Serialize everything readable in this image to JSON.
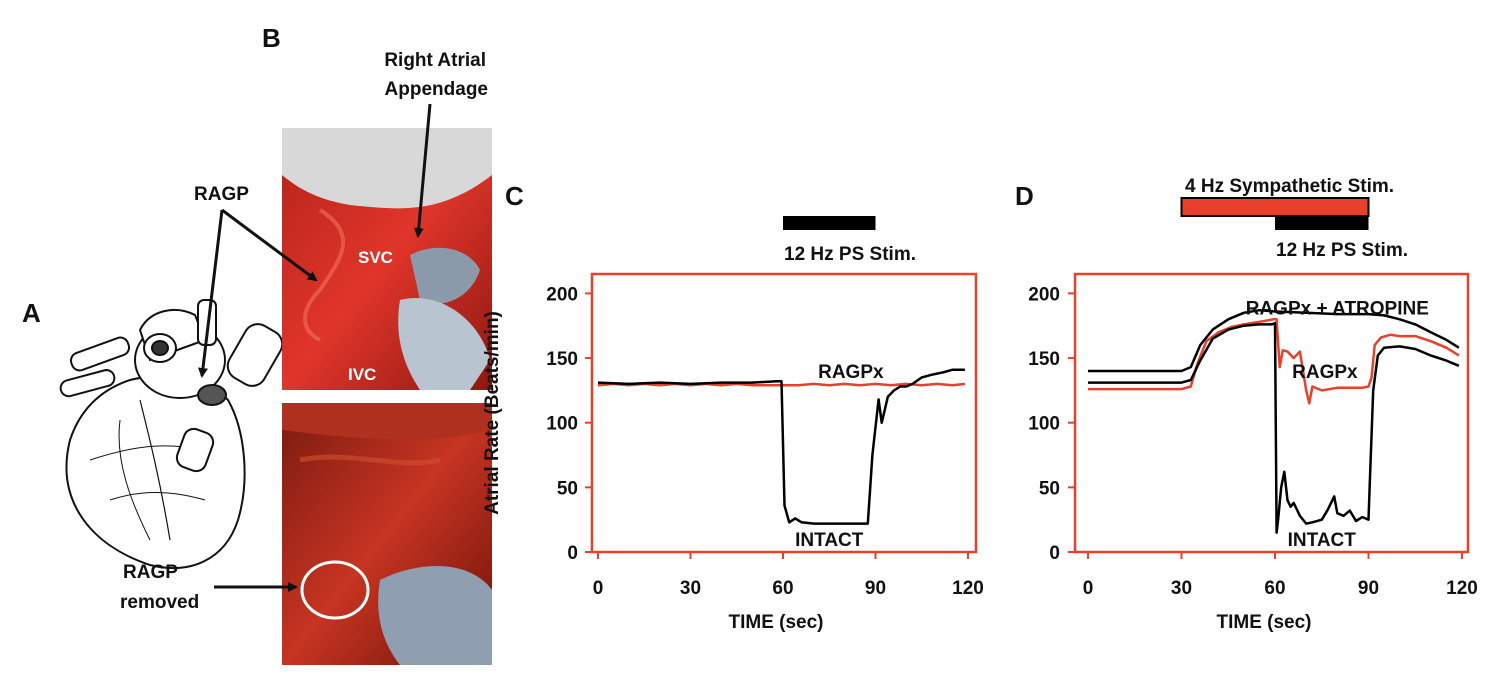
{
  "panels": {
    "a": {
      "letter": "A"
    },
    "b": {
      "letter": "B",
      "label_appendage_1": "Right Atrial",
      "label_appendage_2": "Appendage",
      "label_ragp": "RAGP",
      "label_svc": "SVC",
      "label_ivc": "IVC",
      "label_removed_1": "RAGP",
      "label_removed_2": "removed"
    }
  },
  "chart_data": [
    {
      "id": "C",
      "type": "line",
      "letter": "C",
      "xlabel": "TIME (sec)",
      "ylabel": "Atrial Rate (Beats/min)",
      "xlim": [
        -2,
        120
      ],
      "ylim": [
        0,
        215
      ],
      "xticks": [
        0,
        30,
        60,
        90,
        120
      ],
      "yticks": [
        0,
        50,
        100,
        150,
        200
      ],
      "frame_color": "#e8402a",
      "stim_bars": [
        {
          "label": "12 Hz PS Stim.",
          "x0": 60,
          "x1": 90,
          "color": "#000000"
        }
      ],
      "series": [
        {
          "name": "RAGPx",
          "color": "#e8402a",
          "x": [
            0,
            5,
            10,
            15,
            20,
            25,
            30,
            35,
            40,
            45,
            50,
            55,
            60,
            65,
            70,
            75,
            80,
            85,
            90,
            95,
            100,
            105,
            110,
            115,
            119
          ],
          "y": [
            129,
            130,
            129,
            130,
            129,
            130,
            129,
            130,
            129,
            130,
            129,
            129,
            129,
            129,
            130,
            129,
            130,
            129,
            130,
            129,
            130,
            129,
            130,
            129,
            130
          ]
        },
        {
          "name": "INTACT",
          "color": "#000000",
          "x": [
            0,
            10,
            20,
            30,
            40,
            50,
            58,
            59.5,
            60.5,
            62,
            64,
            66,
            70,
            75,
            80,
            83,
            86,
            87.5,
            89,
            91,
            92,
            93,
            94,
            96,
            98,
            100,
            102,
            105,
            108,
            112,
            115,
            119
          ],
          "y": [
            131,
            130,
            131,
            130,
            131,
            131,
            132,
            132,
            36,
            23,
            26,
            23,
            22,
            22,
            22,
            22,
            22,
            22,
            75,
            118,
            100,
            110,
            120,
            125,
            128,
            128,
            130,
            135,
            137,
            139,
            141,
            141
          ]
        }
      ],
      "annotations": [
        {
          "text": "RAGPx",
          "x": 82,
          "y": 140
        },
        {
          "text": "INTACT",
          "x": 75,
          "y": 10
        }
      ]
    },
    {
      "id": "D",
      "type": "line",
      "letter": "D",
      "xlabel": "TIME (sec)",
      "ylabel": "",
      "xlim": [
        -2,
        120
      ],
      "ylim": [
        0,
        215
      ],
      "xticks": [
        0,
        30,
        60,
        90,
        120
      ],
      "yticks": [
        0,
        50,
        100,
        150,
        200
      ],
      "frame_color": "#e8402a",
      "stim_bars": [
        {
          "label": "4 Hz Sympathetic Stim.",
          "x0": 30,
          "x1": 90,
          "color": "#e8402a",
          "outlined": true
        },
        {
          "label": "12 Hz PS Stim.",
          "x0": 60,
          "x1": 90,
          "color": "#000000"
        }
      ],
      "series": [
        {
          "name": "RAGPx + ATROPINE",
          "color": "#000000",
          "x": [
            0,
            10,
            20,
            30,
            33,
            36,
            40,
            45,
            50,
            55,
            60,
            70,
            80,
            90,
            95,
            100,
            105,
            110,
            115,
            119
          ],
          "y": [
            140,
            140,
            140,
            140,
            143,
            160,
            172,
            180,
            185,
            187,
            186,
            185,
            184,
            184,
            183,
            180,
            176,
            170,
            164,
            158
          ]
        },
        {
          "name": "RAGPx",
          "color": "#e8402a",
          "x": [
            0,
            10,
            20,
            30,
            33,
            35,
            38,
            42,
            46,
            50,
            55,
            59.5,
            60.5,
            61.5,
            62.5,
            64,
            66,
            68,
            70,
            71,
            72,
            75,
            80,
            85,
            88,
            90,
            91,
            92,
            94,
            97,
            100,
            105,
            110,
            115,
            119
          ],
          "y": [
            126,
            126,
            126,
            126,
            128,
            145,
            163,
            170,
            174,
            176,
            178,
            180,
            180,
            143,
            156,
            155,
            150,
            155,
            125,
            115,
            128,
            125,
            127,
            127,
            127,
            128,
            135,
            160,
            166,
            168,
            167,
            167,
            163,
            158,
            152
          ]
        },
        {
          "name": "INTACT",
          "color": "#000000",
          "x": [
            0,
            10,
            20,
            30,
            33,
            36,
            40,
            45,
            50,
            55,
            59,
            60,
            60.5,
            61,
            62,
            63,
            64,
            65,
            66,
            68,
            70,
            72,
            75,
            77,
            79,
            80,
            82,
            84,
            86,
            88,
            89,
            90,
            90.5,
            91.5,
            93,
            95,
            100,
            105,
            110,
            115,
            119
          ],
          "y": [
            131,
            131,
            131,
            131,
            133,
            148,
            165,
            172,
            175,
            176,
            176,
            177,
            15,
            25,
            50,
            62,
            40,
            35,
            38,
            28,
            22,
            23,
            25,
            33,
            43,
            30,
            28,
            32,
            24,
            27,
            26,
            25,
            60,
            125,
            152,
            158,
            159,
            157,
            152,
            148,
            144
          ]
        }
      ],
      "annotations": [
        {
          "text": "RAGPx + ATROPINE",
          "x": 80,
          "y": 189
        },
        {
          "text": "RAGPx",
          "x": 76,
          "y": 140
        },
        {
          "text": "INTACT",
          "x": 75,
          "y": 10
        }
      ]
    }
  ]
}
